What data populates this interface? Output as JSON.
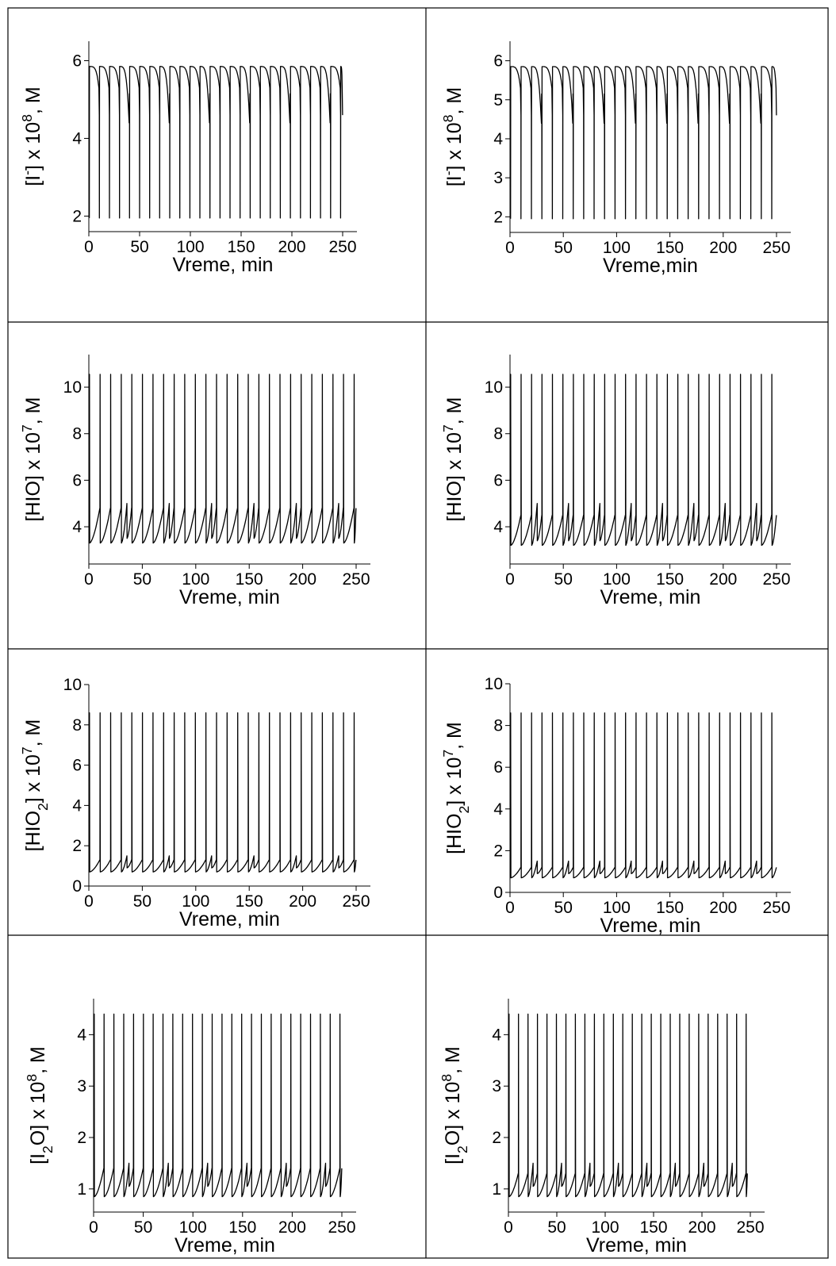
{
  "chart_data": [
    {
      "type": "line",
      "x_range": [
        0,
        250
      ],
      "ylim": [
        1.6,
        6.5
      ],
      "xticks": [
        "0",
        "50",
        "100",
        "150",
        "200",
        "250"
      ],
      "xtick_values": [
        0,
        50,
        100,
        150,
        200,
        250
      ],
      "yticks": [
        "2",
        "4",
        "6"
      ],
      "ytick_values": [
        2,
        4,
        6
      ],
      "xlabel": "Vreme, min",
      "ylabel_parts": [
        {
          "t": "[I"
        },
        {
          "t": "-",
          "s": "sup"
        },
        {
          "t": "] x 10"
        },
        {
          "t": "8",
          "s": "sup"
        },
        {
          "t": ", M"
        }
      ],
      "grid": false,
      "series": [
        {
          "kind": "decay",
          "period": 9.9,
          "start": 0.5,
          "end": 250,
          "peak": 5.85,
          "trough": 1.95,
          "dipEvery": 4,
          "dipLevel": 4.4
        }
      ]
    },
    {
      "type": "line",
      "x_range": [
        0,
        250
      ],
      "ylim": [
        1.6,
        6.5
      ],
      "xticks": [
        "0",
        "50",
        "100",
        "150",
        "200",
        "250"
      ],
      "xtick_values": [
        0,
        50,
        100,
        150,
        200,
        250
      ],
      "yticks": [
        "2",
        "3",
        "4",
        "5",
        "6"
      ],
      "ytick_values": [
        2,
        3,
        4,
        5,
        6
      ],
      "xlabel": "Vreme,min",
      "ylabel_parts": [
        {
          "t": "[I"
        },
        {
          "t": "-",
          "s": "sup"
        },
        {
          "t": "] x 10"
        },
        {
          "t": "8",
          "s": "sup"
        },
        {
          "t": ", M"
        }
      ],
      "grid": false,
      "series": [
        {
          "kind": "decay",
          "period": 9.8,
          "start": 0.5,
          "end": 250,
          "peak": 5.85,
          "trough": 1.95,
          "dipEvery": 3,
          "dipLevel": 4.4
        }
      ]
    },
    {
      "type": "line",
      "x_range": [
        0,
        250
      ],
      "ylim": [
        2.4,
        11.4
      ],
      "xticks": [
        "0",
        "50",
        "100",
        "150",
        "200",
        "250"
      ],
      "xtick_values": [
        0,
        50,
        100,
        150,
        200,
        250
      ],
      "yticks": [
        "4",
        "6",
        "8",
        "10"
      ],
      "ytick_values": [
        4,
        6,
        8,
        10
      ],
      "xlabel": "Vreme, min",
      "ylabel_parts": [
        {
          "t": "[HIO] x 10"
        },
        {
          "t": "7",
          "s": "sup"
        },
        {
          "t": ", M"
        }
      ],
      "grid": false,
      "series": [
        {
          "kind": "spike",
          "period": 9.9,
          "start": 0.5,
          "end": 250,
          "peak": 10.55,
          "base": 3.3,
          "pre": 4.8,
          "doubleEvery": 4,
          "smallPeak": 5.0
        }
      ]
    },
    {
      "type": "line",
      "x_range": [
        0,
        250
      ],
      "ylim": [
        2.4,
        11.4
      ],
      "xticks": [
        "0",
        "50",
        "100",
        "150",
        "200",
        "250"
      ],
      "xtick_values": [
        0,
        50,
        100,
        150,
        200,
        250
      ],
      "yticks": [
        "4",
        "6",
        "8",
        "10"
      ],
      "ytick_values": [
        4,
        6,
        8,
        10
      ],
      "xlabel": "Vreme, min",
      "ylabel_parts": [
        {
          "t": "[HIO] x 10"
        },
        {
          "t": "7",
          "s": "sup"
        },
        {
          "t": ", M"
        }
      ],
      "grid": false,
      "series": [
        {
          "kind": "spike",
          "period": 9.8,
          "start": 0.5,
          "end": 250,
          "peak": 10.55,
          "base": 3.2,
          "pre": 4.5,
          "doubleEvery": 3,
          "smallPeak": 5.0
        }
      ]
    },
    {
      "type": "line",
      "x_range": [
        0,
        250
      ],
      "ylim": [
        0,
        10
      ],
      "xticks": [
        "0",
        "50",
        "100",
        "150",
        "200",
        "250"
      ],
      "xtick_values": [
        0,
        50,
        100,
        150,
        200,
        250
      ],
      "yticks": [
        "0",
        "2",
        "4",
        "6",
        "8",
        "10"
      ],
      "ytick_values": [
        0,
        2,
        4,
        6,
        8,
        10
      ],
      "xlabel": "Vreme, min",
      "ylabel_parts": [
        {
          "t": "[HIO"
        },
        {
          "t": "2",
          "s": "sub"
        },
        {
          "t": "] x 10"
        },
        {
          "t": "7",
          "s": "sup"
        },
        {
          "t": ", M"
        }
      ],
      "grid": false,
      "series": [
        {
          "kind": "spike",
          "period": 9.9,
          "start": 0.5,
          "end": 250,
          "peak": 8.6,
          "base": 0.7,
          "pre": 1.3,
          "doubleEvery": 4,
          "smallPeak": 1.5
        }
      ]
    },
    {
      "type": "line",
      "x_range": [
        0,
        250
      ],
      "ylim": [
        0,
        10
      ],
      "xticks": [
        "0",
        "50",
        "100",
        "150",
        "200",
        "250"
      ],
      "xtick_values": [
        0,
        50,
        100,
        150,
        200,
        250
      ],
      "yticks": [
        "0",
        "2",
        "4",
        "6",
        "8",
        "10"
      ],
      "ytick_values": [
        0,
        2,
        4,
        6,
        8,
        10
      ],
      "xlabel": "Vreme, min",
      "ylabel_parts": [
        {
          "t": "[HIO"
        },
        {
          "t": "2",
          "s": "sub"
        },
        {
          "t": "] x 10"
        },
        {
          "t": "7",
          "s": "sup"
        },
        {
          "t": ", M"
        }
      ],
      "grid": false,
      "series": [
        {
          "kind": "spike",
          "period": 9.8,
          "start": 0.5,
          "end": 250,
          "peak": 8.6,
          "base": 0.7,
          "pre": 1.2,
          "doubleEvery": 3,
          "smallPeak": 1.5
        }
      ]
    },
    {
      "type": "line",
      "x_range": [
        0,
        250
      ],
      "ylim": [
        0.55,
        4.7
      ],
      "xticks": [
        "0",
        "50",
        "100",
        "150",
        "200",
        "250"
      ],
      "xtick_values": [
        0,
        50,
        100,
        150,
        200,
        250
      ],
      "yticks": [
        "1",
        "2",
        "3",
        "4"
      ],
      "ytick_values": [
        1,
        2,
        3,
        4
      ],
      "xlabel": "Vreme, min",
      "ylabel_parts": [
        {
          "t": "[I"
        },
        {
          "t": "2",
          "s": "sub"
        },
        {
          "t": "O] x 10"
        },
        {
          "t": "8",
          "s": "sup"
        },
        {
          "t": ", M"
        }
      ],
      "grid": false,
      "series": [
        {
          "kind": "spike",
          "period": 9.9,
          "start": 0.5,
          "end": 250,
          "peak": 4.4,
          "base": 0.85,
          "pre": 1.4,
          "doubleEvery": 4,
          "smallPeak": 1.5
        }
      ]
    },
    {
      "type": "line",
      "x_range": [
        0,
        250
      ],
      "ylim": [
        0.55,
        4.7
      ],
      "xticks": [
        "0",
        "50",
        "100",
        "150",
        "200",
        "250"
      ],
      "xtick_values": [
        0,
        50,
        100,
        150,
        200,
        250
      ],
      "yticks": [
        "1",
        "2",
        "3",
        "4"
      ],
      "ytick_values": [
        1,
        2,
        3,
        4
      ],
      "xlabel": "Vreme, min",
      "ylabel_parts": [
        {
          "t": "[I"
        },
        {
          "t": "2",
          "s": "sub"
        },
        {
          "t": "O] x 10"
        },
        {
          "t": "8",
          "s": "sup"
        },
        {
          "t": ", M"
        }
      ],
      "grid": false,
      "series": [
        {
          "kind": "spike",
          "period": 9.8,
          "start": 0.5,
          "end": 247,
          "peak": 4.4,
          "base": 0.85,
          "pre": 1.3,
          "doubleEvery": 3,
          "smallPeak": 1.5
        }
      ]
    }
  ]
}
